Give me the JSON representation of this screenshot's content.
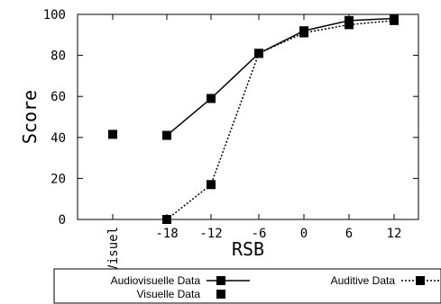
{
  "chart_data": {
    "type": "line",
    "xlabel": "RSB",
    "ylabel": "Score",
    "ylim": [
      0,
      100
    ],
    "yticks": [
      "0",
      "20",
      "40",
      "60",
      "80",
      "100"
    ],
    "categories": [
      "Visuel",
      "-18",
      "-12",
      "-6",
      "0",
      "6",
      "12"
    ],
    "series": [
      {
        "name": "Audiovisuelle Data",
        "style": "solid",
        "color": "#000000",
        "x": [
          "-18",
          "-12",
          "-6",
          "0",
          "6",
          "12"
        ],
        "values": [
          41,
          59,
          81,
          92,
          97,
          98
        ]
      },
      {
        "name": "Auditive Data",
        "style": "dotted",
        "color": "#000000",
        "x": [
          "-18",
          "-12",
          "-6",
          "0",
          "6",
          "12"
        ],
        "values": [
          0,
          17,
          81,
          91,
          95,
          97
        ]
      },
      {
        "name": "Visuelle Data",
        "style": "points",
        "color": "#000000",
        "x": [
          "Visuel"
        ],
        "values": [
          41.5
        ]
      }
    ],
    "grid": false,
    "legend_position": "bottom"
  }
}
